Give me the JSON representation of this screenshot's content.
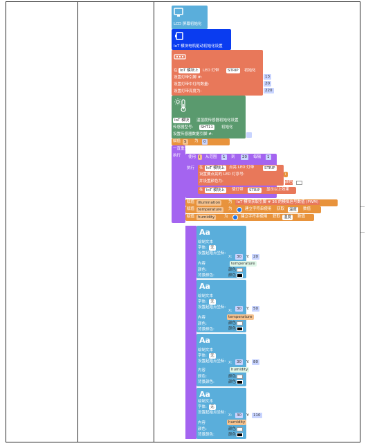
{
  "lcd_init": {
    "title": "LCD 屏幕初始化"
  },
  "motor_init": {
    "title": "IoT 模块电机驱动初始化设置"
  },
  "led_init": {
    "prefix": "在",
    "module": "IoT 模块上",
    "mid": "LED 灯带",
    "strip": "STRIP",
    "suffix": "初始化",
    "pin_label": "设置灯带引脚 #:",
    "pin_value": "13",
    "count_label": "设置灯带中灯的数量:",
    "count_value": "20",
    "brightness_label": "设置灯带亮度为:",
    "brightness_value": "220"
  },
  "sensor_init": {
    "module": "IoT 模块",
    "line1": "温湿度传感器初始化设置",
    "line2_prefix": "传感器型号:",
    "line2_value": "SHT11",
    "line2_suffix": "初始化",
    "line3": "设置传感器数据引脚 #:"
  },
  "loop": {
    "set_label": "赋值",
    "var_s": "S",
    "to_label": "为",
    "s_value": "0",
    "repeat_label": "一直重复",
    "do_label": "执行",
    "for_use": "使用",
    "for_var": "i",
    "for_from": "从范围",
    "for_start": "1",
    "for_to": "到",
    "for_end": "20",
    "for_step_label": "每隔",
    "for_step": "1",
    "inner_do": "执行",
    "light_prefix": "在",
    "light_module": "IoT 模块上",
    "light_mid": "点亮 LED 灯带",
    "light_strip": "STRIP",
    "light_led_label": "设置要点亮的 LED 灯序号:",
    "light_led_value": "i",
    "light_color_label": "并设置颜色为:",
    "light_color_word": "颜色",
    "show_prefix": "在",
    "show_module": "IoT 模块上",
    "show_mid": "使灯带",
    "show_strip": "STRIP",
    "show_suffix": "显示以上效果",
    "illum_set": "赋值",
    "illum_var": "illumination",
    "illum_to": "为",
    "illum_expr": "IoT 模块获取引脚 # 36 的模拟信号数值 (PWM)",
    "temp_set": "赋值",
    "temp_var": "temperature",
    "temp_to": "为",
    "temp_expr": "建立字符串使用",
    "temp_get": "获取",
    "temp_kind": "温度",
    "temp_num": "数值",
    "hum_set": "赋值",
    "hum_var": "humidity",
    "hum_to": "为",
    "hum_expr": "建立字符串使用",
    "hum_get": "获取",
    "hum_kind": "湿度",
    "hum_num": "数值"
  },
  "text_blocks": [
    {
      "aa": "Aa",
      "draw": "绘制文本",
      "font_label": "字体:",
      "font": "无",
      "pos_label": "设置起始点坐标:",
      "x_label": "X:",
      "x": "30",
      "y_label": "Y:",
      "y": "20",
      "content_label": "内容",
      "content": "temperature",
      "color_label": "颜色:",
      "color_word": "颜色",
      "bg_label": "背景颜色:",
      "bg_word": "颜色"
    },
    {
      "aa": "Aa",
      "draw": "绘制文本",
      "font_label": "字体:",
      "font": "无",
      "pos_label": "设置起始点坐标:",
      "x_label": "X:",
      "x": "30",
      "y_label": "Y:",
      "y": "50",
      "content_label": "内容",
      "content": "temperature",
      "color_label": "颜色:",
      "color_word": "颜色",
      "bg_label": "背景颜色:",
      "bg_word": "颜色"
    },
    {
      "aa": "Aa",
      "draw": "绘制文本",
      "font_label": "字体:",
      "font": "无",
      "pos_label": "设置起始点坐标:",
      "x_label": "X:",
      "x": "30",
      "y_label": "Y:",
      "y": "80",
      "content_label": "内容",
      "content": "humidity",
      "color_label": "颜色:",
      "color_word": "颜色",
      "bg_label": "背景颜色:",
      "bg_word": "颜色"
    },
    {
      "aa": "Aa",
      "draw": "绘制文本",
      "font_label": "字体:",
      "font": "无",
      "pos_label": "设置起始点坐标:",
      "x_label": "X:",
      "x": "30",
      "y_label": "Y:",
      "y": "110",
      "content_label": "内容",
      "content": "humidity",
      "color_label": "颜色:",
      "color_word": "颜色",
      "bg_label": "背景颜色:",
      "bg_word": "颜色"
    }
  ],
  "colors": {
    "lcd": "#5aaedb",
    "motor": "#0a3cf0",
    "led": "#e8785a",
    "sensor": "#5a9a6e",
    "loop": "#a464f0",
    "text": "#5aaedb",
    "var": "#e8933c"
  }
}
